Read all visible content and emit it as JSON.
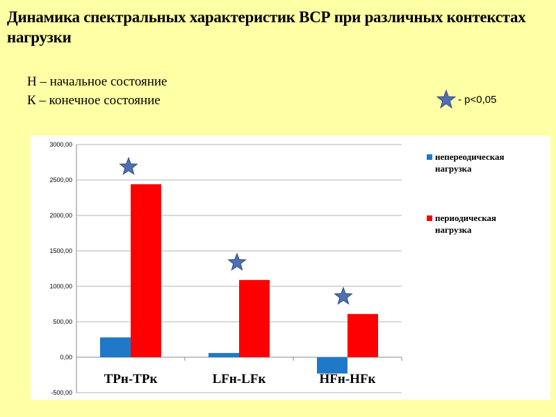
{
  "slide": {
    "title": "Динамика спектральных характеристик ВСР при различных контекстах нагрузки",
    "note_initial": "Н – начальное состояние",
    "note_final": "К – конечное состояние",
    "significance_label": "- p<0,05",
    "star_color": "#4F6FB0"
  },
  "chart_data": {
    "type": "bar",
    "categories": [
      "TPн-TPк",
      "LFн-LFк",
      "HFн-HFк"
    ],
    "series": [
      {
        "name": "непереодическая нагрузка",
        "values": [
          280,
          60,
          -230
        ],
        "color": "#1F78C8"
      },
      {
        "name": "периодическая нагрузка",
        "values": [
          2440,
          1090,
          610
        ],
        "color": "#FF0000"
      }
    ],
    "significant": [
      true,
      true,
      true
    ],
    "ylim": [
      -500,
      3000
    ],
    "yticks": [
      "-500,00",
      "0,00",
      "500,00",
      "1000,00",
      "1500,00",
      "2000,00",
      "2500,00",
      "3000,00"
    ],
    "ytick_values": [
      -500,
      0,
      500,
      1000,
      1500,
      2000,
      2500,
      3000
    ],
    "grid": true,
    "legend_position": "right"
  }
}
